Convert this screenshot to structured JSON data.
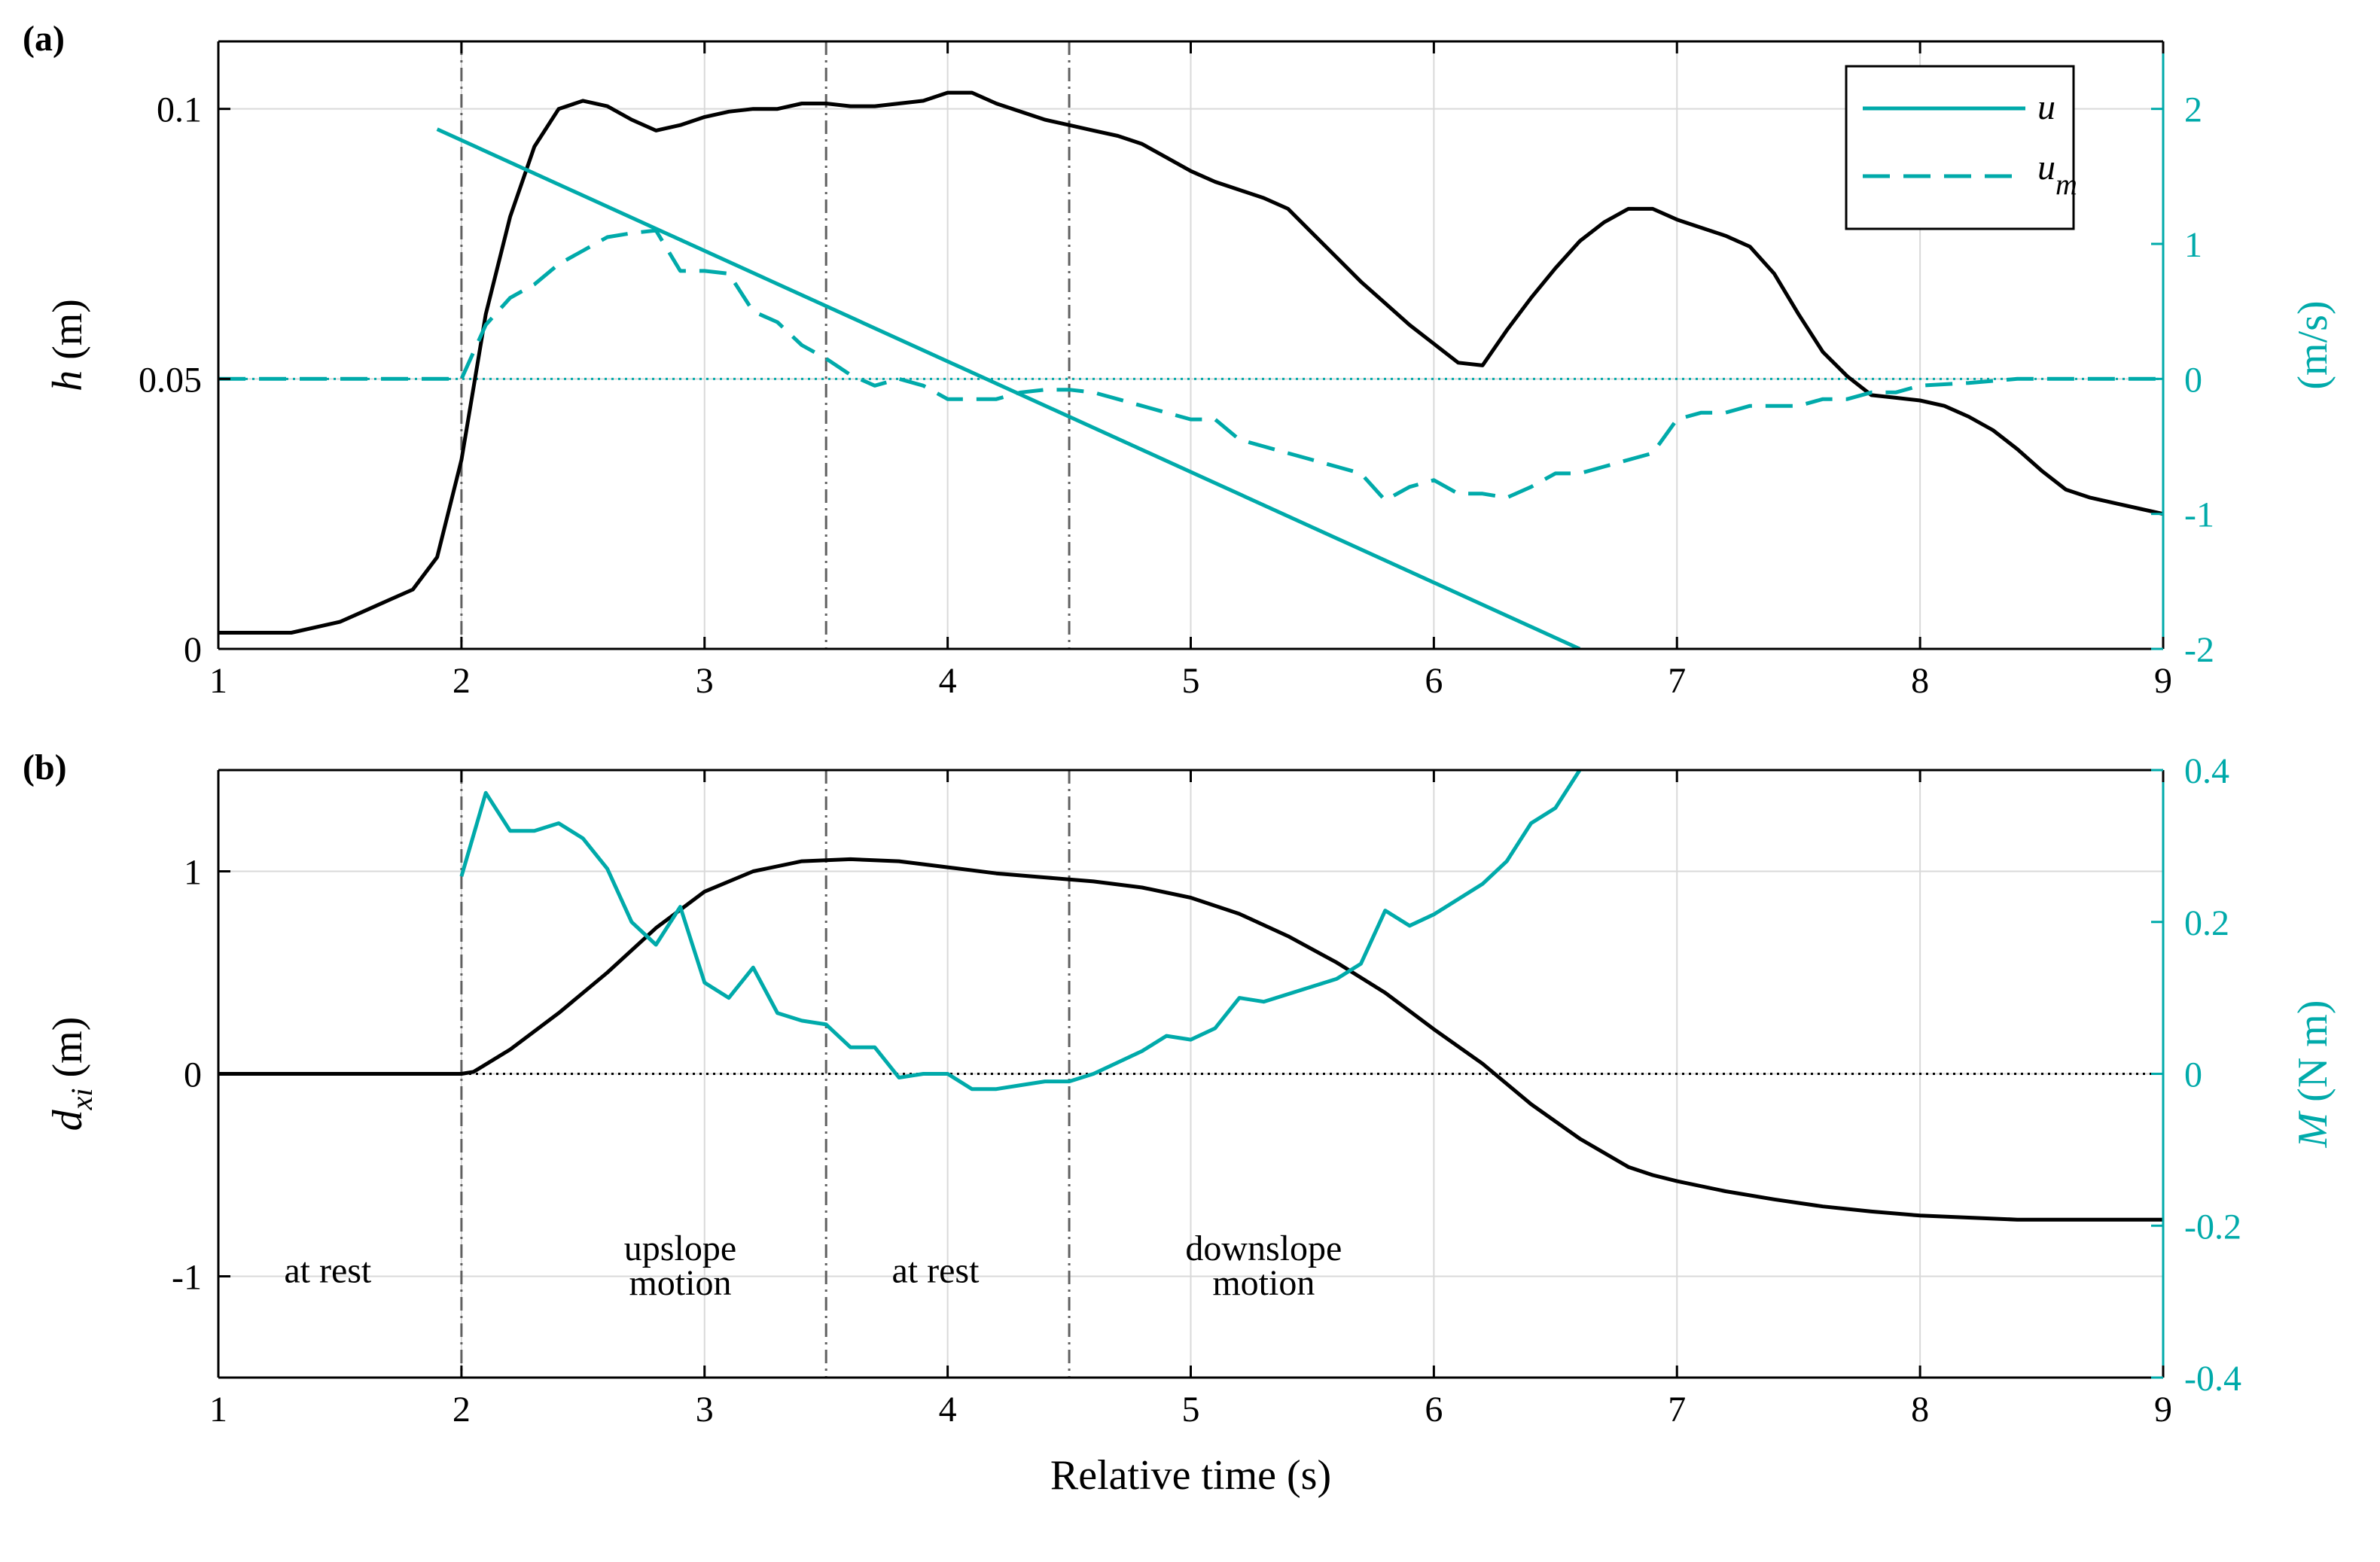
{
  "colors": {
    "black": "#000000",
    "teal": "#00aaaa",
    "grid": "#d9d9d9",
    "ref": "#606060"
  },
  "chart_data": [
    {
      "type": "line",
      "panel_label": "(a)",
      "xlim": [
        1,
        9
      ],
      "xticks": [
        "1",
        "2",
        "3",
        "4",
        "5",
        "6",
        "7",
        "8",
        "9"
      ],
      "ylim_left": [
        0,
        0.1125
      ],
      "yticks_left": [
        {
          "v": 0,
          "t": "0"
        },
        {
          "v": 0.05,
          "t": "0.05"
        },
        {
          "v": 0.1,
          "t": "0.1"
        }
      ],
      "ylabel_left": {
        "var": "h",
        "unit": " (m)"
      },
      "ylim_right": [
        -2,
        2.5
      ],
      "yticks_right": [
        {
          "v": -2,
          "t": "-2"
        },
        {
          "v": -1,
          "t": "-1"
        },
        {
          "v": 0,
          "t": "0"
        },
        {
          "v": 1,
          "t": "1"
        },
        {
          "v": 2,
          "t": "2"
        }
      ],
      "ylabel_right": "(m/s)",
      "phase_lines": [
        2,
        3.5,
        4.5
      ],
      "zero_line_right": 0,
      "legend": {
        "u": "u",
        "um_main": "u",
        "um_sub": "m",
        "position": "top-right"
      },
      "series": [
        {
          "name": "h",
          "axis": "left",
          "style": "solid-black",
          "x": [
            1,
            1.3,
            1.4,
            1.5,
            1.6,
            1.7,
            1.8,
            1.9,
            2,
            2.1,
            2.2,
            2.3,
            2.4,
            2.5,
            2.6,
            2.7,
            2.8,
            2.9,
            3,
            3.1,
            3.2,
            3.3,
            3.4,
            3.5,
            3.6,
            3.7,
            3.8,
            3.9,
            4,
            4.1,
            4.2,
            4.3,
            4.4,
            4.5,
            4.6,
            4.7,
            4.8,
            4.9,
            5,
            5.1,
            5.2,
            5.3,
            5.4,
            5.5,
            5.6,
            5.7,
            5.8,
            5.9,
            6,
            6.1,
            6.2,
            6.3,
            6.4,
            6.5,
            6.6,
            6.7,
            6.8,
            6.9,
            7,
            7.1,
            7.2,
            7.3,
            7.4,
            7.5,
            7.6,
            7.7,
            7.8,
            7.9,
            8,
            8.1,
            8.2,
            8.3,
            8.4,
            8.5,
            8.6,
            8.7,
            8.8,
            8.9,
            9
          ],
          "y": [
            0.003,
            0.003,
            0.004,
            0.005,
            0.007,
            0.009,
            0.011,
            0.017,
            0.035,
            0.062,
            0.08,
            0.093,
            0.1,
            0.1015,
            0.1005,
            0.098,
            0.096,
            0.097,
            0.0985,
            0.0995,
            0.1,
            0.1,
            0.101,
            0.101,
            0.1005,
            0.1005,
            0.101,
            0.1015,
            0.103,
            0.103,
            0.101,
            0.0995,
            0.098,
            0.097,
            0.096,
            0.095,
            0.0935,
            0.091,
            0.0885,
            0.0865,
            0.085,
            0.0835,
            0.0815,
            0.077,
            0.0725,
            0.068,
            0.064,
            0.06,
            0.0565,
            0.053,
            0.0525,
            0.059,
            0.065,
            0.0705,
            0.0755,
            0.079,
            0.0815,
            0.0815,
            0.0795,
            0.078,
            0.0765,
            0.0745,
            0.0695,
            0.062,
            0.055,
            0.0505,
            0.047,
            0.0465,
            0.046,
            0.045,
            0.043,
            0.0405,
            0.037,
            0.033,
            0.0295,
            0.028,
            0.027,
            0.026,
            0.025
          ]
        },
        {
          "name": "u",
          "axis": "right",
          "style": "solid-teal",
          "x": [
            1.9,
            6.6
          ],
          "y": [
            1.85,
            -2.0
          ]
        },
        {
          "name": "u_m",
          "axis": "right",
          "style": "dashed-teal",
          "x": [
            1,
            1.4,
            2,
            2.1,
            2.2,
            2.3,
            2.4,
            2.5,
            2.6,
            2.7,
            2.8,
            2.9,
            3,
            3.1,
            3.2,
            3.3,
            3.4,
            3.5,
            3.6,
            3.7,
            3.8,
            3.9,
            4,
            4.1,
            4.2,
            4.3,
            4.4,
            4.5,
            4.6,
            4.7,
            4.8,
            4.9,
            5,
            5.1,
            5.2,
            5.3,
            5.4,
            5.5,
            5.6,
            5.7,
            5.8,
            5.9,
            6,
            6.1,
            6.2,
            6.3,
            6.4,
            6.5,
            6.6,
            6.7,
            6.8,
            6.9,
            7,
            7.1,
            7.2,
            7.3,
            7.4,
            7.5,
            7.6,
            7.7,
            7.8,
            7.9,
            8,
            8.2,
            8.4,
            8.6,
            9
          ],
          "y": [
            0,
            0,
            0,
            0.4,
            0.6,
            0.7,
            0.85,
            0.95,
            1.05,
            1.08,
            1.1,
            0.8,
            0.8,
            0.78,
            0.5,
            0.42,
            0.25,
            0.15,
            0.03,
            -0.05,
            0,
            -0.05,
            -0.15,
            -0.15,
            -0.15,
            -0.1,
            -0.08,
            -0.08,
            -0.1,
            -0.15,
            -0.2,
            -0.25,
            -0.3,
            -0.3,
            -0.45,
            -0.5,
            -0.55,
            -0.6,
            -0.65,
            -0.7,
            -0.9,
            -0.8,
            -0.75,
            -0.85,
            -0.85,
            -0.88,
            -0.8,
            -0.7,
            -0.7,
            -0.65,
            -0.6,
            -0.55,
            -0.3,
            -0.25,
            -0.25,
            -0.2,
            -0.2,
            -0.2,
            -0.15,
            -0.15,
            -0.1,
            -0.1,
            -0.05,
            -0.03,
            0,
            0,
            0
          ]
        }
      ]
    },
    {
      "type": "line",
      "panel_label": "(b)",
      "xlim": [
        1,
        9
      ],
      "xticks": [
        "1",
        "2",
        "3",
        "4",
        "5",
        "6",
        "7",
        "8",
        "9"
      ],
      "xlabel": "Relative time (s)",
      "ylim_left": [
        -1.5,
        1.5
      ],
      "yticks_left": [
        {
          "v": -1,
          "t": "-1"
        },
        {
          "v": 0,
          "t": "0"
        },
        {
          "v": 1,
          "t": "1"
        }
      ],
      "ylabel_left": {
        "var": "d",
        "sub": "xi",
        "unit": " (m)"
      },
      "ylim_right": [
        -0.4,
        0.4
      ],
      "yticks_right": [
        {
          "v": -0.4,
          "t": "-0.4"
        },
        {
          "v": -0.2,
          "t": "-0.2"
        },
        {
          "v": 0,
          "t": "0"
        },
        {
          "v": 0.2,
          "t": "0.2"
        },
        {
          "v": 0.4,
          "t": "0.4"
        }
      ],
      "ylabel_right": {
        "var": "M",
        "unit": " (N m)"
      },
      "phase_lines": [
        2,
        3.5,
        4.5
      ],
      "zero_line_left": 0,
      "annotations": [
        {
          "lines": [
            "at rest"
          ],
          "x": 1.45,
          "y": -1.03
        },
        {
          "lines": [
            "upslope",
            "motion"
          ],
          "x": 2.9,
          "y": -0.92
        },
        {
          "lines": [
            "at rest"
          ],
          "x": 3.95,
          "y": -1.03
        },
        {
          "lines": [
            "downslope",
            "motion"
          ],
          "x": 5.3,
          "y": -0.92
        }
      ],
      "series": [
        {
          "name": "d_xi",
          "axis": "left",
          "style": "solid-black",
          "x": [
            1,
            2,
            2.05,
            2.2,
            2.4,
            2.6,
            2.8,
            3,
            3.2,
            3.4,
            3.6,
            3.8,
            4,
            4.2,
            4.4,
            4.6,
            4.8,
            5,
            5.2,
            5.4,
            5.6,
            5.8,
            6,
            6.2,
            6.4,
            6.6,
            6.8,
            6.9,
            7,
            7.2,
            7.4,
            7.6,
            7.8,
            8,
            8.2,
            8.4,
            8.6,
            8.8,
            9
          ],
          "y": [
            0,
            0,
            0.01,
            0.12,
            0.3,
            0.5,
            0.72,
            0.9,
            1.0,
            1.05,
            1.06,
            1.05,
            1.02,
            0.99,
            0.97,
            0.95,
            0.92,
            0.87,
            0.79,
            0.68,
            0.55,
            0.4,
            0.22,
            0.05,
            -0.15,
            -0.32,
            -0.46,
            -0.5,
            -0.53,
            -0.58,
            -0.62,
            -0.655,
            -0.68,
            -0.7,
            -0.71,
            -0.72,
            -0.72,
            -0.72,
            -0.72
          ]
        },
        {
          "name": "M",
          "axis": "right",
          "style": "solid-teal",
          "x": [
            2,
            2.1,
            2.2,
            2.3,
            2.4,
            2.5,
            2.6,
            2.7,
            2.8,
            2.9,
            3,
            3.1,
            3.2,
            3.3,
            3.4,
            3.5,
            3.6,
            3.7,
            3.8,
            3.9,
            4,
            4.1,
            4.2,
            4.3,
            4.4,
            4.5,
            4.6,
            4.7,
            4.8,
            4.9,
            5,
            5.1,
            5.2,
            5.3,
            5.4,
            5.5,
            5.6,
            5.7,
            5.8,
            5.9,
            6,
            6.1,
            6.2,
            6.3,
            6.4,
            6.5,
            6.6
          ],
          "y": [
            0.26,
            0.37,
            0.32,
            0.32,
            0.33,
            0.31,
            0.27,
            0.2,
            0.17,
            0.22,
            0.12,
            0.1,
            0.14,
            0.08,
            0.07,
            0.065,
            0.035,
            0.035,
            -0.005,
            0,
            0,
            -0.02,
            -0.02,
            -0.015,
            -0.01,
            -0.01,
            0,
            0.015,
            0.03,
            0.05,
            0.045,
            0.06,
            0.1,
            0.095,
            0.105,
            0.115,
            0.125,
            0.145,
            0.215,
            0.195,
            0.21,
            0.23,
            0.25,
            0.28,
            0.33,
            0.35,
            0.4
          ]
        }
      ]
    }
  ]
}
